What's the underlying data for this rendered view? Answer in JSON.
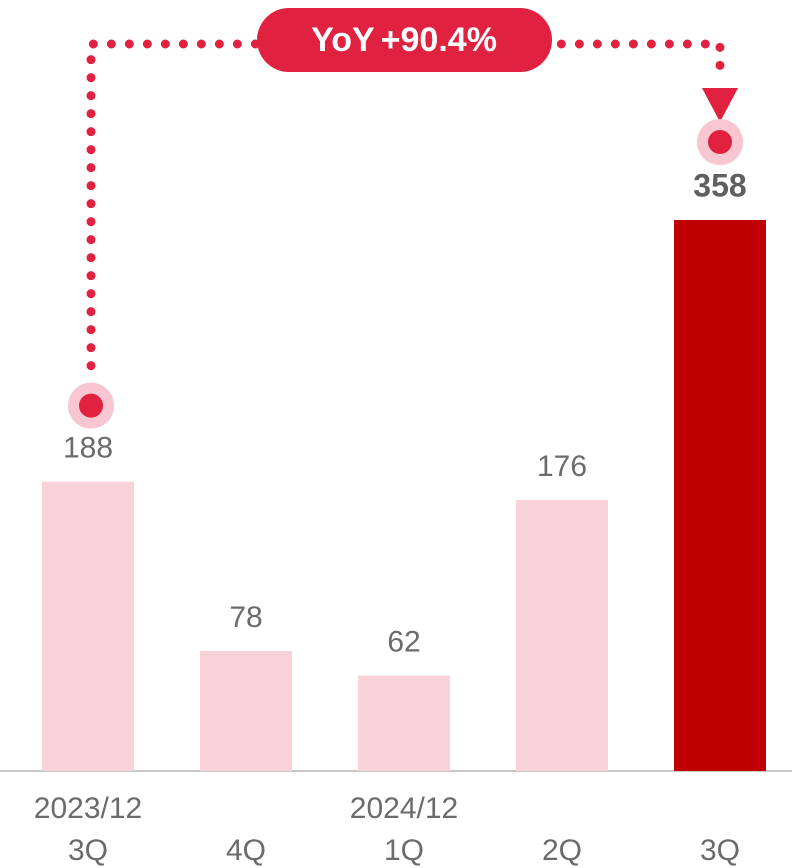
{
  "chart_data": {
    "type": "bar",
    "categories": [
      "3Q",
      "4Q",
      "1Q",
      "2Q",
      "3Q"
    ],
    "category_groups": [
      "2023/12",
      null,
      "2024/12",
      null,
      null
    ],
    "values": [
      188,
      78,
      62,
      176,
      358
    ],
    "colors": [
      "#f8d1d9",
      "#f8d1d9",
      "#f8d1d9",
      "#f8d1d9",
      "#c00000"
    ],
    "annotation": {
      "label": "YoY",
      "value": 90.4,
      "value_label": "+90.4%",
      "color": "#e0213f"
    }
  }
}
